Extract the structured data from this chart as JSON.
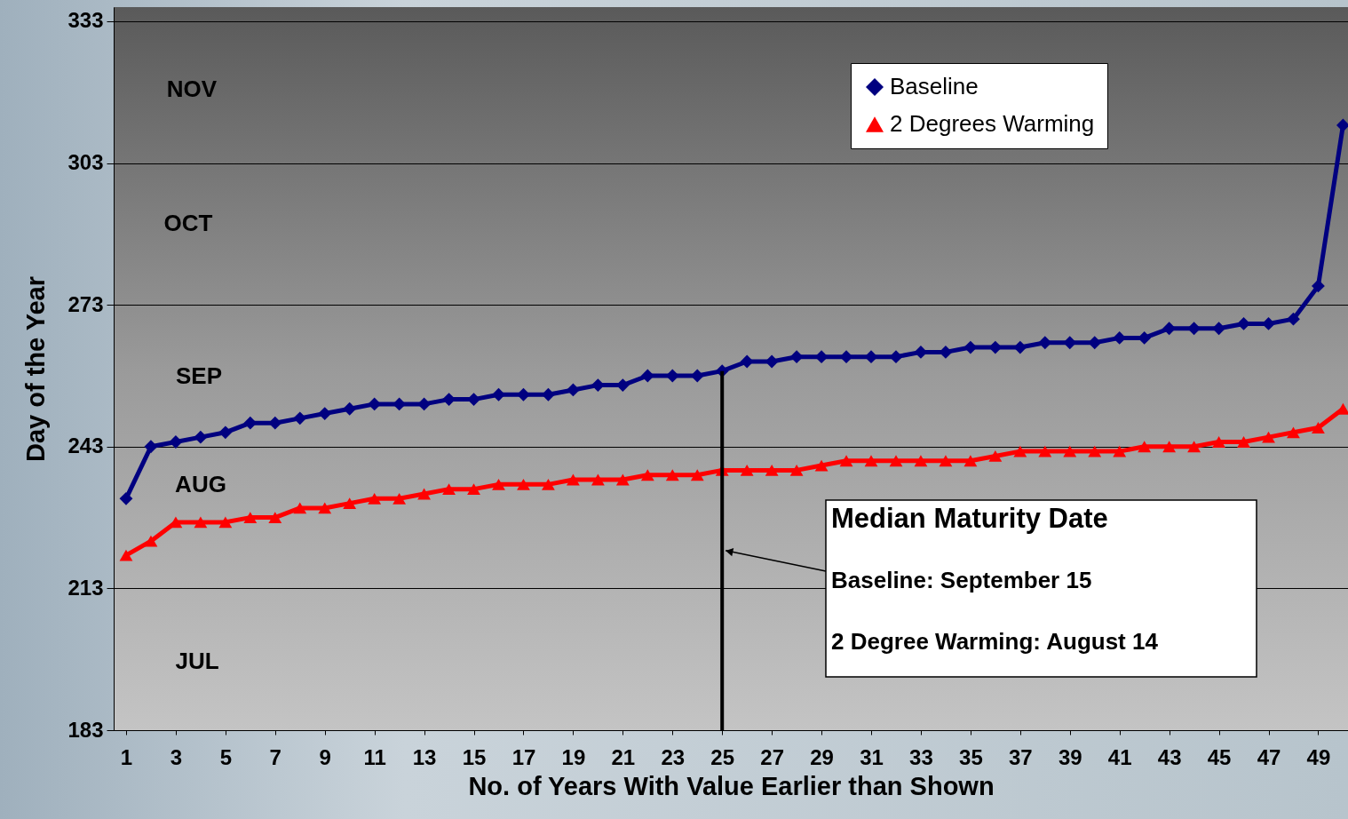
{
  "chart_data": {
    "type": "line",
    "xlabel": "No. of Years With Value Earlier than Shown",
    "ylabel": "Day of the Year",
    "x": [
      1,
      2,
      3,
      4,
      5,
      6,
      7,
      8,
      9,
      10,
      11,
      12,
      13,
      14,
      15,
      16,
      17,
      18,
      19,
      20,
      21,
      22,
      23,
      24,
      25,
      26,
      27,
      28,
      29,
      30,
      31,
      32,
      33,
      34,
      35,
      36,
      37,
      38,
      39,
      40,
      41,
      42,
      43,
      44,
      45,
      46,
      47,
      48,
      49,
      50
    ],
    "series": [
      {
        "name": "Baseline",
        "color": "#000080",
        "marker": "diamond",
        "values": [
          232,
          243,
          244,
          245,
          246,
          248,
          248,
          249,
          250,
          251,
          252,
          252,
          252,
          253,
          253,
          254,
          254,
          254,
          255,
          256,
          256,
          258,
          258,
          258,
          259,
          261,
          261,
          262,
          262,
          262,
          262,
          262,
          263,
          263,
          264,
          264,
          264,
          265,
          265,
          265,
          266,
          266,
          268,
          268,
          268,
          269,
          269,
          270,
          277,
          311
        ]
      },
      {
        "name": "2 Degrees Warming",
        "color": "#ff0000",
        "marker": "triangle",
        "values": [
          220,
          223,
          227,
          227,
          227,
          228,
          228,
          230,
          230,
          231,
          232,
          232,
          233,
          234,
          234,
          235,
          235,
          235,
          236,
          236,
          236,
          237,
          237,
          237,
          238,
          238,
          238,
          238,
          239,
          240,
          240,
          240,
          240,
          240,
          240,
          241,
          242,
          242,
          242,
          242,
          242,
          243,
          243,
          243,
          244,
          244,
          245,
          246,
          247,
          251
        ]
      }
    ],
    "xlim": [
      0.5,
      50.2
    ],
    "xticks": [
      1,
      3,
      5,
      7,
      9,
      11,
      13,
      15,
      17,
      19,
      21,
      23,
      25,
      27,
      29,
      31,
      33,
      35,
      37,
      39,
      41,
      43,
      45,
      47,
      49
    ],
    "ylim": [
      183,
      336
    ],
    "yticks": [
      183,
      213,
      243,
      273,
      303,
      333
    ],
    "grid": "y",
    "legend": "top right",
    "ref_lines": [
      {
        "axis": "x",
        "value": 25,
        "color": "#000000"
      }
    ],
    "annotations": [
      "NOV",
      "OCT",
      "SEP",
      "AUG",
      "JUL",
      "Median Maturity Date",
      {
        "text": "Baseline: September 15",
        "x": 25,
        "y": 221
      },
      "2 Degree Warming: August 14"
    ]
  }
}
